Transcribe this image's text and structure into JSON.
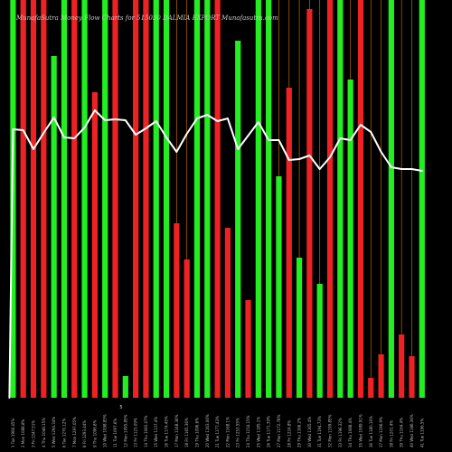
{
  "chart_data": {
    "type": "bar",
    "title": "MunafaSutra Money Flow Charts for 515030 DALMIA EXPORT Munafasutra.com",
    "small_mark": "5",
    "colors": {
      "background": "#000000",
      "up": "#22ee22",
      "down": "#ee2222",
      "line": "#ffffff",
      "guide": "#ff8a00"
    },
    "ylim": [
      0,
      440
    ],
    "categories": [
      "Tue 17 Jan 2023",
      "Mon 16 Jan 2023",
      "Fri 13 Jan 2023",
      "Thu 12 Jan 2023",
      "Wed 11 Jan 2023",
      "Tue 10 Jan 2023",
      "Mon 09 Jan 2023",
      "Fri 06 Jan 2023",
      "Thu 05 Jan 2023",
      "Wed 04 Jan 2023",
      "Tue 03 Jan 2023",
      "Mon 02 Jan 2023",
      "Fri 30 Dec 2022",
      "Thu 29 Dec 2022",
      "Wed 28 Dec 2022",
      "Tue 27 Dec 2022",
      "Mon 26 Dec 2022",
      "Fri 23 Dec 2022",
      "Thu 22 Dec 2022",
      "Wed 21 Dec 2022",
      "Tue 20 Dec 2022",
      "Mon 19 Dec 2022",
      "Fri 16 Dec 2022",
      "Thu 15 Dec 2022",
      "Wed 14 Dec 2022",
      "Tue 13 Dec 2022",
      "Mon 12 Dec 2022",
      "Fri 09 Dec 2022",
      "Thu 08 Dec 2022",
      "Wed 07 Dec 2022",
      "Tue 06 Dec 2022",
      "Mon 05 Dec 2022",
      "Fri 02 Dec 2022",
      "Thu 01 Dec 2022",
      "Wed 30 Nov 2022",
      "Tue 29 Nov 2022",
      "Mon 28 Nov 2022",
      "Fri 25 Nov 2022",
      "Thu 24 Nov 2022",
      "Wed 23 Nov 2022",
      "Tue 22 Nov 2022"
    ],
    "tick_labels": [
      "1 Tue 1906.45%",
      "2 Mon 1088.8%",
      "3 Fri 1347.51%",
      "4 Thu 1048.15%",
      "5 Wed 1294.34%",
      "6 Tue 1270.12%",
      "7 Mon 1297.05%",
      "8 Fri 1293.44%",
      "9 Thu 1096.8%",
      "10 Wed 1098.85%",
      "11 Tue 1097.6%",
      "12 Mon 1095.85%",
      "13 Fri 1123.09%",
      "14 Thu 1083.07%",
      "15 Wed 1137.4%",
      "16 Tue 1174.45%",
      "17 Mon 1168.36%",
      "18 Fri 1165.36%",
      "19 Thu 1096.6%",
      "20 Wed 1163.06%",
      "21 Tue 1177.43%",
      "22 Mon 1168.1%",
      "23 Fri 1253.55%",
      "24 Thu 1154.15%",
      "25 Wed 1185.1%",
      "26 Tue 1171.39%",
      "27 Mon 1172.78%",
      "28 Fri 1224.8%",
      "29 Thu 1166.2%",
      "30 Wed 1165.4%",
      "31 Tue 1194.73%",
      "32 Mon 1199.85%",
      "33 Fri 1196.32%",
      "34 Thu 1088.4%",
      "35 Wed 1089.91%",
      "36 Tue 1180.16%",
      "37 Mon 1196.9%",
      "38 Fri 1201.4%",
      "39 Thu 1164.4%",
      "40 Wed 1186.36%",
      "41 Tue 1196.5%"
    ],
    "series": [
      {
        "values": [
          440,
          440,
          440,
          440,
          378,
          440,
          440,
          440,
          338,
          440,
          440,
          24,
          440,
          440,
          440,
          440,
          193,
          153,
          440,
          440,
          440,
          188,
          395,
          108,
          440,
          440,
          245,
          343,
          155,
          430,
          126,
          440,
          440,
          352,
          440,
          22,
          48,
          440,
          70,
          46,
          440
        ],
        "directions": [
          "up",
          "down",
          "down",
          "down",
          "up",
          "up",
          "down",
          "up",
          "down",
          "up",
          "down",
          "up",
          "down",
          "down",
          "up",
          "up",
          "down",
          "down",
          "up",
          "up",
          "down",
          "down",
          "up",
          "down",
          "up",
          "up",
          "up",
          "down",
          "up",
          "down",
          "up",
          "down",
          "up",
          "up",
          "down",
          "down",
          "down",
          "up",
          "down",
          "down",
          "up"
        ]
      },
      {
        "type": "line",
        "values": [
          297,
          296,
          275,
          293,
          310,
          288,
          287,
          299,
          318,
          307,
          308,
          307,
          291,
          298,
          306,
          288,
          272,
          292,
          309,
          313,
          306,
          309,
          275,
          290,
          305,
          285,
          285,
          263,
          264,
          268,
          253,
          266,
          287,
          285,
          302,
          294,
          272,
          255,
          253,
          253,
          251
        ]
      }
    ],
    "guide_indexes": [
      16,
      17,
      18,
      26,
      27,
      28,
      29,
      30,
      31,
      32,
      33,
      34,
      35,
      36,
      37,
      38,
      39
    ]
  }
}
